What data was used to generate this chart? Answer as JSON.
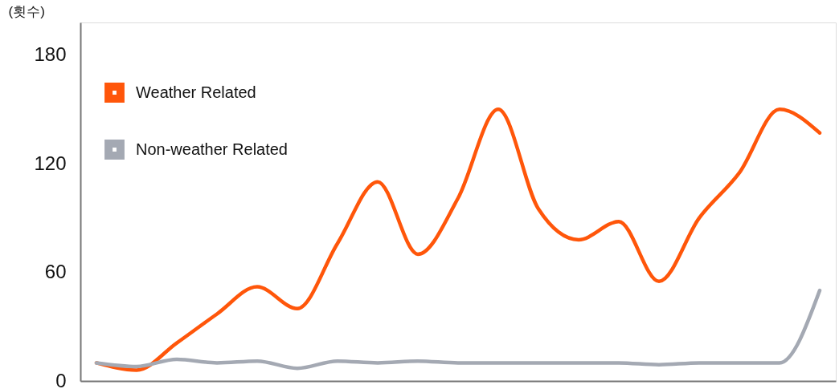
{
  "chart_data": {
    "type": "line",
    "ylabel": "(횟수)",
    "categories": [
      null,
      null,
      null,
      null,
      null,
      null,
      null,
      null,
      null,
      null,
      null,
      null,
      null,
      null,
      null,
      null,
      null,
      null,
      null
    ],
    "series": [
      {
        "name": "Weather Related",
        "color": "#ff560a",
        "values": [
          10,
          6,
          21,
          37,
          52,
          40,
          76,
          110,
          70,
          101,
          150,
          95,
          78,
          88,
          55,
          90,
          115,
          150,
          137
        ]
      },
      {
        "name": "Non-weather Related",
        "color": "#a4a9b3",
        "values": [
          10,
          8,
          12,
          10,
          11,
          7,
          11,
          10,
          11,
          10,
          10,
          10,
          10,
          10,
          9,
          10,
          10,
          10,
          50
        ]
      }
    ],
    "ylim": [
      0,
      198
    ],
    "yticks": [
      0,
      60,
      120,
      180
    ],
    "grid": false,
    "legend": "top left"
  }
}
